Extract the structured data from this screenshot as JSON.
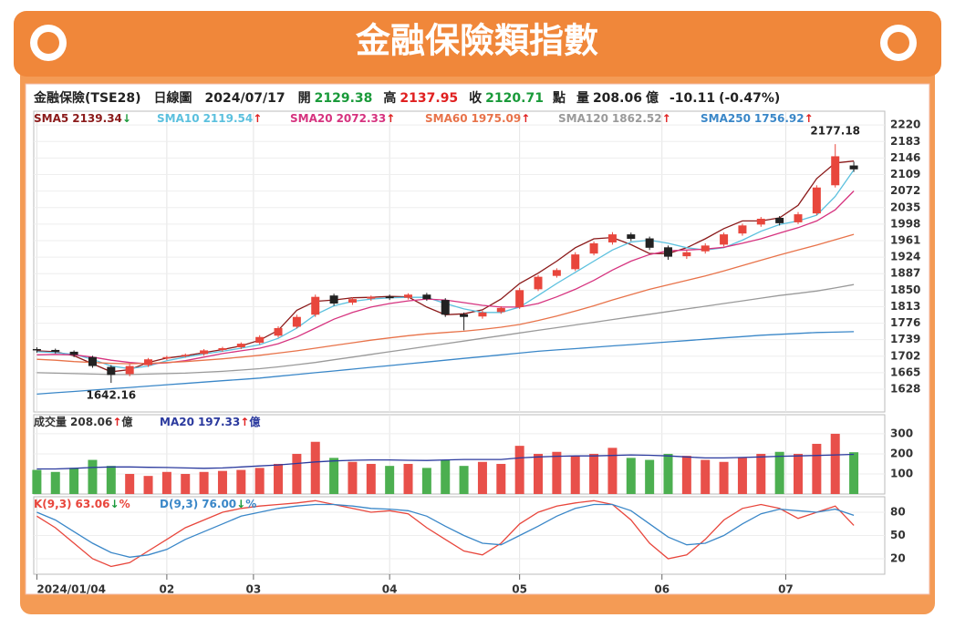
{
  "title": "金融保險類指數",
  "info": {
    "name": "金融保險(TSE28)",
    "period": "日線圖",
    "date": "2024/07/17",
    "open_label": "開",
    "high_label": "高",
    "close_label": "收",
    "unit": "點",
    "volume_label": "量",
    "volume_unit": "億",
    "change": "-10.11",
    "change_pct": "(-0.47%)"
  },
  "chart_data": [
    {
      "type": "candlestick",
      "up_color": "#e8463c",
      "down_color": "#222222",
      "grid": true,
      "x": [
        0,
        3,
        6,
        9,
        12,
        15,
        18,
        21,
        24,
        27,
        30,
        33,
        36,
        39,
        42,
        45,
        48,
        51,
        54,
        57,
        60,
        63,
        66,
        69,
        72,
        75,
        78,
        81,
        84,
        87,
        90,
        93,
        96,
        99,
        102,
        105,
        108,
        111,
        114,
        117,
        120,
        123,
        126,
        129,
        132
      ],
      "xlim": [
        -0.5,
        137
      ],
      "ylim": [
        1577,
        2251
      ],
      "yticks": [
        1628,
        1665,
        1702,
        1739,
        1776,
        1813,
        1850,
        1887,
        1924,
        1961,
        1998,
        2035,
        2072,
        2109,
        2146,
        2183,
        2220
      ],
      "open": [
        1718,
        1716,
        1712,
        1700,
        1678,
        1662,
        1682,
        1697,
        1702,
        1707,
        1716,
        1722,
        1732,
        1748,
        1768,
        1795,
        1838,
        1822,
        1831,
        1836,
        1833,
        1840,
        1828,
        1796,
        1791,
        1801,
        1812,
        1852,
        1882,
        1897,
        1932,
        1957,
        1975,
        1966,
        1946,
        1926,
        1937,
        1952,
        1977,
        1997,
        2012,
        2002,
        2022,
        2085,
        2129.38
      ],
      "high": [
        1722,
        1719,
        1715,
        1703,
        1682,
        1684,
        1698,
        1703,
        1708,
        1718,
        1723,
        1733,
        1749,
        1769,
        1795,
        1840,
        1842,
        1834,
        1838,
        1840,
        1843,
        1844,
        1832,
        1800,
        1804,
        1814,
        1855,
        1884,
        1899,
        1935,
        1959,
        1980,
        1979,
        1970,
        1950,
        1939,
        1955,
        1979,
        1999,
        2014,
        2016,
        2025,
        2085,
        2177.18,
        2137.95
      ],
      "low": [
        1710,
        1708,
        1700,
        1676,
        1642.16,
        1657,
        1678,
        1693,
        1699,
        1703,
        1712,
        1718,
        1728,
        1744,
        1764,
        1790,
        1815,
        1817,
        1826,
        1828,
        1829,
        1826,
        1790,
        1760,
        1786,
        1797,
        1808,
        1848,
        1878,
        1893,
        1928,
        1952,
        1960,
        1940,
        1918,
        1920,
        1932,
        1948,
        1972,
        1992,
        1995,
        1998,
        2018,
        2080,
        2115
      ],
      "close": [
        1715,
        1712,
        1705,
        1680,
        1660,
        1680,
        1695,
        1700,
        1705,
        1715,
        1720,
        1730,
        1745,
        1765,
        1790,
        1835,
        1820,
        1830,
        1835,
        1832,
        1840,
        1830,
        1795,
        1790,
        1800,
        1810,
        1850,
        1880,
        1895,
        1930,
        1955,
        1975,
        1965,
        1945,
        1925,
        1935,
        1950,
        1975,
        1995,
        2010,
        2000,
        2020,
        2080,
        2150,
        2120.71
      ],
      "series": [
        {
          "name": "SMA5",
          "label": "2139.34",
          "arrow": "↓",
          "color": "#8b1a1a",
          "values": [
            1714,
            1712,
            1703,
            1685,
            1667,
            1672,
            1688,
            1698,
            1703,
            1710,
            1717,
            1725,
            1738,
            1760,
            1805,
            1825,
            1828,
            1833,
            1834,
            1836,
            1835,
            1812,
            1795,
            1797,
            1806,
            1830,
            1865,
            1888,
            1915,
            1945,
            1965,
            1968,
            1952,
            1932,
            1932,
            1945,
            1965,
            1988,
            2005,
            2005,
            2012,
            2040,
            2100,
            2135,
            2139.34
          ]
        },
        {
          "name": "SMA10",
          "label": "2119.54",
          "arrow": "↑",
          "color": "#5bc0de",
          "values": [
            1712,
            1710,
            1706,
            1695,
            1680,
            1674,
            1680,
            1692,
            1700,
            1707,
            1713,
            1720,
            1728,
            1742,
            1765,
            1795,
            1815,
            1825,
            1830,
            1833,
            1834,
            1834,
            1820,
            1808,
            1800,
            1800,
            1812,
            1838,
            1865,
            1890,
            1915,
            1940,
            1958,
            1962,
            1955,
            1945,
            1940,
            1945,
            1962,
            1982,
            1997,
            2005,
            2018,
            2060,
            2119.54
          ]
        },
        {
          "name": "SMA20",
          "label": "2072.33",
          "arrow": "↑",
          "color": "#d6337f",
          "values": [
            1705,
            1706,
            1705,
            1700,
            1693,
            1688,
            1685,
            1687,
            1692,
            1700,
            1708,
            1714,
            1720,
            1730,
            1745,
            1765,
            1785,
            1800,
            1812,
            1820,
            1826,
            1830,
            1828,
            1822,
            1816,
            1812,
            1812,
            1820,
            1835,
            1852,
            1872,
            1895,
            1915,
            1930,
            1938,
            1940,
            1942,
            1946,
            1955,
            1965,
            1978,
            1990,
            2005,
            2030,
            2072.33
          ]
        },
        {
          "name": "SMA60",
          "label": "1975.09",
          "arrow": "↑",
          "color": "#e8734a",
          "values": [
            1695,
            1693,
            1690,
            1688,
            1686,
            1685,
            1686,
            1688,
            1690,
            1693,
            1696,
            1700,
            1704,
            1709,
            1714,
            1720,
            1726,
            1732,
            1738,
            1743,
            1748,
            1752,
            1755,
            1758,
            1762,
            1767,
            1773,
            1782,
            1792,
            1803,
            1815,
            1828,
            1840,
            1852,
            1862,
            1872,
            1882,
            1893,
            1905,
            1917,
            1929,
            1940,
            1951,
            1963,
            1975.09
          ]
        },
        {
          "name": "SMA120",
          "label": "1862.52",
          "arrow": "↑",
          "color": "#9a9a9a",
          "values": [
            1665,
            1664,
            1663,
            1662,
            1661,
            1661,
            1662,
            1663,
            1664,
            1666,
            1668,
            1671,
            1674,
            1678,
            1683,
            1688,
            1694,
            1700,
            1706,
            1712,
            1718,
            1724,
            1730,
            1736,
            1742,
            1748,
            1754,
            1760,
            1766,
            1772,
            1778,
            1784,
            1790,
            1796,
            1802,
            1808,
            1814,
            1820,
            1826,
            1832,
            1838,
            1843,
            1848,
            1855,
            1862.52
          ]
        },
        {
          "name": "SMA250",
          "label": "1756.92",
          "arrow": "↑",
          "color": "#3a87c8",
          "values": [
            1617,
            1620,
            1623,
            1626,
            1629,
            1632,
            1635,
            1638,
            1641,
            1644,
            1647,
            1650,
            1653,
            1657,
            1661,
            1665,
            1669,
            1673,
            1677,
            1681,
            1685,
            1689,
            1693,
            1697,
            1701,
            1705,
            1709,
            1713,
            1716,
            1719,
            1722,
            1725,
            1728,
            1731,
            1734,
            1737,
            1740,
            1743,
            1746,
            1749,
            1751,
            1753,
            1755,
            1756,
            1756.92
          ]
        }
      ]
    },
    {
      "type": "bar",
      "name": "成交量",
      "label": "208.06",
      "arrow": "↑",
      "unit": "億",
      "up_color": "#e8504a",
      "down_color": "#4caf50",
      "x": [
        0,
        3,
        6,
        9,
        12,
        15,
        18,
        21,
        24,
        27,
        30,
        33,
        36,
        39,
        42,
        45,
        48,
        51,
        54,
        57,
        60,
        63,
        66,
        69,
        72,
        75,
        78,
        81,
        84,
        87,
        90,
        93,
        96,
        99,
        102,
        105,
        108,
        111,
        114,
        117,
        120,
        123,
        126,
        129,
        132
      ],
      "xlim": [
        -0.5,
        137
      ],
      "ylim": [
        0,
        395
      ],
      "yticks": [
        100,
        200,
        300
      ],
      "values": [
        120,
        110,
        130,
        170,
        140,
        100,
        90,
        110,
        100,
        110,
        115,
        120,
        130,
        150,
        200,
        260,
        180,
        160,
        150,
        140,
        150,
        130,
        170,
        140,
        160,
        150,
        240,
        200,
        210,
        190,
        200,
        230,
        180,
        170,
        200,
        190,
        170,
        160,
        180,
        200,
        210,
        200,
        250,
        300,
        208.06
      ],
      "series": [
        {
          "name": "MA20",
          "label": "197.33",
          "arrow": "↑",
          "unit": "億",
          "color": "#2b3a9e",
          "values": [
            125,
            125,
            128,
            132,
            135,
            135,
            133,
            132,
            130,
            128,
            130,
            135,
            140,
            145,
            152,
            160,
            165,
            168,
            170,
            170,
            168,
            167,
            170,
            172,
            172,
            172,
            180,
            185,
            188,
            190,
            190,
            192,
            195,
            193,
            190,
            185,
            180,
            180,
            182,
            185,
            188,
            190,
            192,
            195,
            197.33
          ]
        }
      ]
    },
    {
      "type": "line",
      "x": [
        0,
        3,
        6,
        9,
        12,
        15,
        18,
        21,
        24,
        27,
        30,
        33,
        36,
        39,
        42,
        45,
        48,
        51,
        54,
        57,
        60,
        63,
        66,
        69,
        72,
        75,
        78,
        81,
        84,
        87,
        90,
        93,
        96,
        99,
        102,
        105,
        108,
        111,
        114,
        117,
        120,
        123,
        126,
        129,
        132
      ],
      "xlim": [
        -0.5,
        137
      ],
      "ylim": [
        0,
        100
      ],
      "yticks": [
        20,
        50,
        80
      ],
      "xticks": [
        {
          "value": 0,
          "label": "2024/01/04"
        },
        {
          "value": 21,
          "label": "02"
        },
        {
          "value": 35,
          "label": "03"
        },
        {
          "value": 57,
          "label": "04"
        },
        {
          "value": 78,
          "label": "05"
        },
        {
          "value": 101,
          "label": "06"
        },
        {
          "value": 121,
          "label": "07"
        }
      ],
      "series": [
        {
          "name": "K(9,3)",
          "label": "63.06",
          "arrow": "↓",
          "unit": "%",
          "color": "#e8463c",
          "values": [
            75,
            60,
            40,
            20,
            10,
            15,
            30,
            45,
            60,
            70,
            80,
            85,
            88,
            90,
            92,
            95,
            90,
            85,
            80,
            82,
            78,
            60,
            45,
            30,
            25,
            40,
            65,
            80,
            88,
            92,
            95,
            90,
            70,
            40,
            20,
            25,
            45,
            70,
            85,
            90,
            85,
            72,
            80,
            88,
            63.06
          ]
        },
        {
          "name": "D(9,3)",
          "label": "76.00",
          "arrow": "↓",
          "unit": "%",
          "color": "#3a87c8",
          "values": [
            80,
            70,
            55,
            40,
            28,
            22,
            25,
            32,
            45,
            55,
            65,
            75,
            80,
            85,
            88,
            90,
            90,
            88,
            85,
            84,
            82,
            75,
            62,
            50,
            40,
            38,
            50,
            62,
            75,
            85,
            90,
            90,
            82,
            65,
            48,
            38,
            40,
            50,
            65,
            78,
            84,
            82,
            80,
            84,
            76
          ]
        }
      ]
    }
  ]
}
